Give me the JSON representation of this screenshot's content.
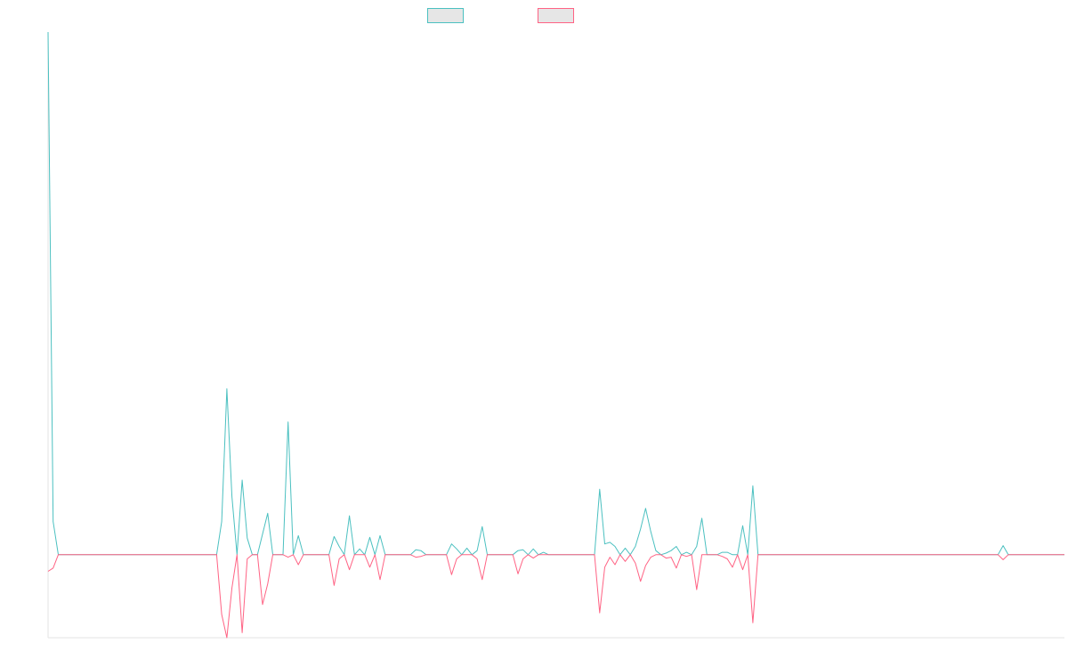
{
  "chart_data": {
    "type": "line",
    "title": "",
    "xlabel": "",
    "ylabel": "",
    "grid": false,
    "legend_position": "top-center",
    "ylim": [
      -100,
      630
    ],
    "zero_line_value": 0,
    "colors": {
      "series_1": "#4bc0c0",
      "series_2": "#ff6384",
      "legend_fill": "#e6e6e6",
      "axis": "#e3e3e3"
    },
    "series": [
      {
        "name": "",
        "points": [
          [
            0,
            630
          ],
          [
            1,
            40
          ],
          [
            2,
            0
          ],
          [
            33,
            0
          ],
          [
            34,
            40
          ],
          [
            35,
            200
          ],
          [
            36,
            70
          ],
          [
            37,
            0
          ],
          [
            38,
            90
          ],
          [
            39,
            20
          ],
          [
            40,
            0
          ],
          [
            41,
            0
          ],
          [
            42,
            25
          ],
          [
            43,
            50
          ],
          [
            44,
            0
          ],
          [
            46,
            0
          ],
          [
            47,
            160
          ],
          [
            48,
            0
          ],
          [
            49,
            23
          ],
          [
            50,
            0
          ],
          [
            55,
            0
          ],
          [
            56,
            22
          ],
          [
            57,
            10
          ],
          [
            58,
            0
          ],
          [
            59,
            47
          ],
          [
            60,
            0
          ],
          [
            61,
            7
          ],
          [
            62,
            0
          ],
          [
            63,
            21
          ],
          [
            64,
            0
          ],
          [
            65,
            23
          ],
          [
            66,
            0
          ],
          [
            71,
            0
          ],
          [
            72,
            6
          ],
          [
            73,
            5
          ],
          [
            74,
            0
          ],
          [
            78,
            0
          ],
          [
            79,
            13
          ],
          [
            80,
            7
          ],
          [
            81,
            0
          ],
          [
            82,
            8
          ],
          [
            83,
            0
          ],
          [
            84,
            5
          ],
          [
            85,
            34
          ],
          [
            86,
            0
          ],
          [
            91,
            0
          ],
          [
            92,
            5
          ],
          [
            93,
            6
          ],
          [
            94,
            0
          ],
          [
            95,
            7
          ],
          [
            96,
            0
          ],
          [
            97,
            3
          ],
          [
            98,
            0
          ],
          [
            107,
            0
          ],
          [
            108,
            79
          ],
          [
            109,
            13
          ],
          [
            110,
            15
          ],
          [
            111,
            10
          ],
          [
            112,
            0
          ],
          [
            113,
            8
          ],
          [
            114,
            0
          ],
          [
            115,
            10
          ],
          [
            116,
            31
          ],
          [
            117,
            56
          ],
          [
            118,
            28
          ],
          [
            119,
            5
          ],
          [
            120,
            0
          ],
          [
            121,
            2
          ],
          [
            122,
            5
          ],
          [
            123,
            10
          ],
          [
            124,
            0
          ],
          [
            125,
            3
          ],
          [
            126,
            0
          ],
          [
            127,
            10
          ],
          [
            128,
            44
          ],
          [
            129,
            0
          ],
          [
            131,
            0
          ],
          [
            132,
            3
          ],
          [
            133,
            3
          ],
          [
            134,
            0
          ],
          [
            135,
            0
          ],
          [
            136,
            35
          ],
          [
            137,
            0
          ],
          [
            138,
            83
          ],
          [
            139,
            0
          ],
          [
            186,
            0
          ],
          [
            187,
            11
          ],
          [
            188,
            0
          ],
          [
            199,
            0
          ]
        ]
      },
      {
        "name": "",
        "points": [
          [
            0,
            -20
          ],
          [
            1,
            -16
          ],
          [
            2,
            0
          ],
          [
            33,
            0
          ],
          [
            34,
            -72
          ],
          [
            35,
            -100
          ],
          [
            36,
            -40
          ],
          [
            37,
            0
          ],
          [
            38,
            -94
          ],
          [
            39,
            -5
          ],
          [
            40,
            0
          ],
          [
            41,
            0
          ],
          [
            42,
            -60
          ],
          [
            43,
            -35
          ],
          [
            44,
            0
          ],
          [
            46,
            0
          ],
          [
            47,
            -3
          ],
          [
            48,
            0
          ],
          [
            49,
            -12
          ],
          [
            50,
            0
          ],
          [
            55,
            0
          ],
          [
            56,
            -37
          ],
          [
            57,
            -5
          ],
          [
            58,
            0
          ],
          [
            59,
            -18
          ],
          [
            60,
            0
          ],
          [
            61,
            0
          ],
          [
            62,
            0
          ],
          [
            63,
            -15
          ],
          [
            64,
            0
          ],
          [
            65,
            -30
          ],
          [
            66,
            0
          ],
          [
            71,
            0
          ],
          [
            72,
            -3
          ],
          [
            73,
            -2
          ],
          [
            74,
            0
          ],
          [
            78,
            0
          ],
          [
            79,
            -24
          ],
          [
            80,
            -5
          ],
          [
            81,
            0
          ],
          [
            82,
            0
          ],
          [
            83,
            0
          ],
          [
            84,
            -5
          ],
          [
            85,
            -30
          ],
          [
            86,
            0
          ],
          [
            91,
            0
          ],
          [
            92,
            -23
          ],
          [
            93,
            -5
          ],
          [
            94,
            0
          ],
          [
            95,
            -4
          ],
          [
            96,
            0
          ],
          [
            97,
            0
          ],
          [
            98,
            0
          ],
          [
            107,
            0
          ],
          [
            108,
            -70
          ],
          [
            109,
            -15
          ],
          [
            110,
            -3
          ],
          [
            111,
            -12
          ],
          [
            112,
            0
          ],
          [
            113,
            -8
          ],
          [
            114,
            0
          ],
          [
            115,
            -10
          ],
          [
            116,
            -32
          ],
          [
            117,
            -13
          ],
          [
            118,
            -3
          ],
          [
            119,
            0
          ],
          [
            120,
            0
          ],
          [
            121,
            -4
          ],
          [
            122,
            -3
          ],
          [
            123,
            -16
          ],
          [
            124,
            0
          ],
          [
            125,
            -2
          ],
          [
            126,
            0
          ],
          [
            127,
            -42
          ],
          [
            128,
            0
          ],
          [
            129,
            0
          ],
          [
            131,
            0
          ],
          [
            132,
            -2
          ],
          [
            133,
            -5
          ],
          [
            134,
            -15
          ],
          [
            135,
            0
          ],
          [
            136,
            -18
          ],
          [
            137,
            0
          ],
          [
            138,
            -82
          ],
          [
            139,
            0
          ],
          [
            186,
            0
          ],
          [
            187,
            -6
          ],
          [
            188,
            0
          ],
          [
            199,
            0
          ]
        ]
      }
    ]
  }
}
